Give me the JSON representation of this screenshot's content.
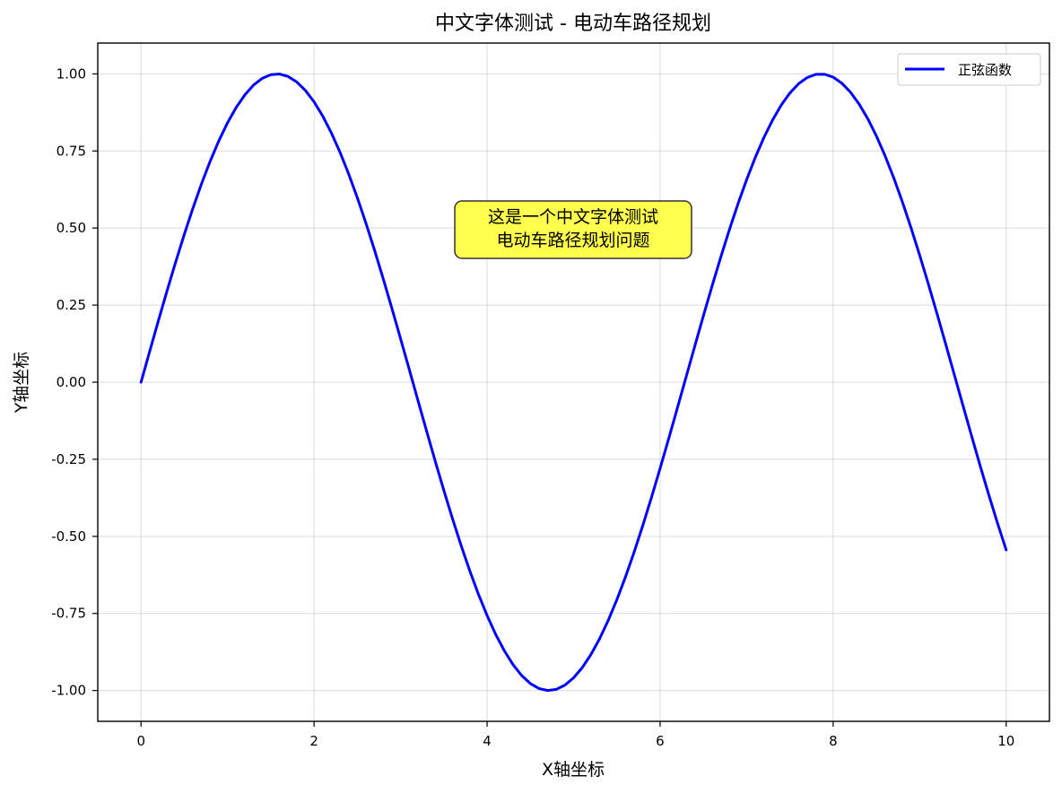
{
  "chart_data": {
    "type": "line",
    "title": "中文字体测试 - 电动车路径规划",
    "xlabel": "X轴坐标",
    "ylabel": "Y轴坐标",
    "xlim": [
      -0.5,
      10.5
    ],
    "ylim": [
      -1.1,
      1.1
    ],
    "xticks": [
      0,
      2,
      4,
      6,
      8,
      10
    ],
    "xtick_labels": [
      "0",
      "2",
      "4",
      "6",
      "8",
      "10"
    ],
    "yticks": [
      -1.0,
      -0.75,
      -0.5,
      -0.25,
      0.0,
      0.25,
      0.5,
      0.75,
      1.0
    ],
    "ytick_labels": [
      "-1.00",
      "-0.75",
      "-0.50",
      "-0.25",
      "0.00",
      "0.25",
      "0.50",
      "0.75",
      "1.00"
    ],
    "grid": true,
    "legend_position": "top-right",
    "series": [
      {
        "name": "正弦函数",
        "color": "#0000ff",
        "function": "sin(x)",
        "x": [
          0.0,
          0.1,
          0.2,
          0.3,
          0.4,
          0.5,
          0.6,
          0.7,
          0.8,
          0.9,
          1.0,
          1.1,
          1.2,
          1.3,
          1.4,
          1.5,
          1.6,
          1.7,
          1.8,
          1.9,
          2.0,
          2.1,
          2.2,
          2.3,
          2.4,
          2.5,
          2.6,
          2.7,
          2.8,
          2.9,
          3.0,
          3.1,
          3.2,
          3.3,
          3.4,
          3.5,
          3.6,
          3.7,
          3.8,
          3.9,
          4.0,
          4.1,
          4.2,
          4.3,
          4.4,
          4.5,
          4.6,
          4.7,
          4.8,
          4.9,
          5.0,
          5.1,
          5.2,
          5.3,
          5.4,
          5.5,
          5.6,
          5.7,
          5.8,
          5.9,
          6.0,
          6.1,
          6.2,
          6.3,
          6.4,
          6.5,
          6.6,
          6.7,
          6.8,
          6.9,
          7.0,
          7.1,
          7.2,
          7.3,
          7.4,
          7.5,
          7.6,
          7.7,
          7.8,
          7.9,
          8.0,
          8.1,
          8.2,
          8.3,
          8.4,
          8.5,
          8.6,
          8.7,
          8.8,
          8.9,
          9.0,
          9.1,
          9.2,
          9.3,
          9.4,
          9.5,
          9.6,
          9.7,
          9.8,
          9.9,
          10.0
        ],
        "y": [
          0.0,
          0.0998,
          0.1987,
          0.2955,
          0.3894,
          0.4794,
          0.5646,
          0.6442,
          0.7174,
          0.7833,
          0.8415,
          0.8912,
          0.932,
          0.9636,
          0.9854,
          0.9975,
          0.9996,
          0.9917,
          0.9738,
          0.9463,
          0.9093,
          0.8632,
          0.8085,
          0.7457,
          0.6755,
          0.5985,
          0.5155,
          0.4274,
          0.335,
          0.2392,
          0.1411,
          0.0416,
          -0.0584,
          -0.1577,
          -0.2555,
          -0.3508,
          -0.4425,
          -0.5298,
          -0.6119,
          -0.6878,
          -0.7568,
          -0.8183,
          -0.8716,
          -0.9162,
          -0.9516,
          -0.9775,
          -0.9937,
          -0.9999,
          -0.9962,
          -0.9825,
          -0.9589,
          -0.9258,
          -0.8835,
          -0.8323,
          -0.7728,
          -0.7055,
          -0.6313,
          -0.5507,
          -0.4646,
          -0.3739,
          -0.2794,
          -0.1822,
          -0.0831,
          0.0168,
          0.1165,
          0.2151,
          0.3115,
          0.4048,
          0.4941,
          0.5784,
          0.657,
          0.729,
          0.7937,
          0.8504,
          0.8987,
          0.938,
          0.9679,
          0.9882,
          0.9985,
          0.9989,
          0.9894,
          0.9699,
          0.9407,
          0.9022,
          0.8546,
          0.7985,
          0.7344,
          0.663,
          0.5849,
          0.501,
          0.4121,
          0.319,
          0.2229,
          0.1245,
          0.0248,
          -0.0752,
          -0.1743,
          -0.2718,
          -0.3665,
          -0.4575,
          -0.544
        ]
      }
    ],
    "annotation": {
      "lines": [
        "这是一个中文字体测试",
        "电动车路径规划问题"
      ],
      "x": 5.0,
      "y": 0.5,
      "background": "#ffff4d",
      "border": "#333333"
    }
  }
}
